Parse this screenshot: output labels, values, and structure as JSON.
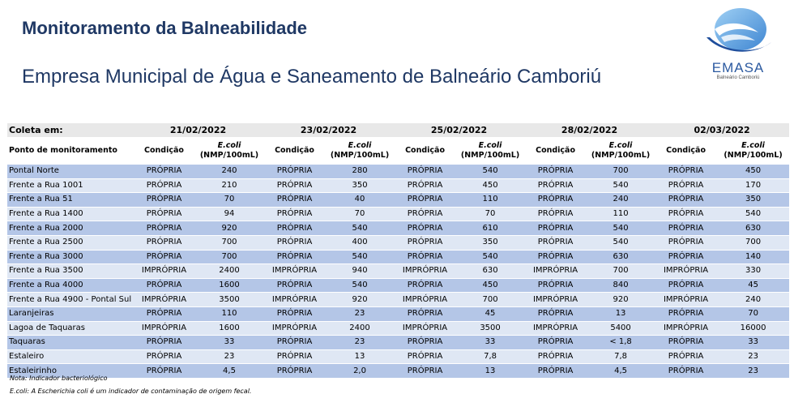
{
  "header": {
    "title": "Monitoramento da Balneabilidade",
    "subtitle": "Empresa Municipal de Água e Saneamento de Balneário Camboriú"
  },
  "logo": {
    "name": "EMASA",
    "tagline": "Balneário Camboriú",
    "colors": {
      "wave_dark": "#1f4e9c",
      "wave_light": "#5fa4e0"
    }
  },
  "table": {
    "coleta_label": "Coleta em:",
    "point_header": "Ponto de monitoramento",
    "condition_header": "Condição",
    "ecoli_header": "E.coli",
    "unit_header": "(NMP/100mL)",
    "dates": [
      "21/02/2022",
      "23/02/2022",
      "25/02/2022",
      "28/02/2022",
      "02/03/2022"
    ],
    "rows": [
      {
        "point": "Pontal Norte",
        "values": [
          [
            "PRÓPRIA",
            "240"
          ],
          [
            "PRÓPRIA",
            "280"
          ],
          [
            "PRÓPRIA",
            "540"
          ],
          [
            "PRÓPRIA",
            "700"
          ],
          [
            "PRÓPRIA",
            "450"
          ]
        ]
      },
      {
        "point": "Frente a Rua 1001",
        "values": [
          [
            "PRÓPRIA",
            "210"
          ],
          [
            "PRÓPRIA",
            "350"
          ],
          [
            "PRÓPRIA",
            "450"
          ],
          [
            "PRÓPRIA",
            "540"
          ],
          [
            "PRÓPRIA",
            "170"
          ]
        ]
      },
      {
        "point": "Frente a Rua 51",
        "values": [
          [
            "PRÓPRIA",
            "70"
          ],
          [
            "PRÓPRIA",
            "40"
          ],
          [
            "PRÓPRIA",
            "110"
          ],
          [
            "PRÓPRIA",
            "240"
          ],
          [
            "PRÓPRIA",
            "350"
          ]
        ]
      },
      {
        "point": "Frente a Rua 1400",
        "values": [
          [
            "PRÓPRIA",
            "94"
          ],
          [
            "PRÓPRIA",
            "70"
          ],
          [
            "PRÓPRIA",
            "70"
          ],
          [
            "PRÓPRIA",
            "110"
          ],
          [
            "PRÓPRIA",
            "540"
          ]
        ]
      },
      {
        "point": "Frente a Rua 2000",
        "values": [
          [
            "PRÓPRIA",
            "920"
          ],
          [
            "PRÓPRIA",
            "540"
          ],
          [
            "PRÓPRIA",
            "610"
          ],
          [
            "PRÓPRIA",
            "540"
          ],
          [
            "PRÓPRIA",
            "630"
          ]
        ]
      },
      {
        "point": "Frente a Rua 2500",
        "values": [
          [
            "PRÓPRIA",
            "700"
          ],
          [
            "PRÓPRIA",
            "400"
          ],
          [
            "PRÓPRIA",
            "350"
          ],
          [
            "PRÓPRIA",
            "540"
          ],
          [
            "PRÓPRIA",
            "700"
          ]
        ]
      },
      {
        "point": "Frente a Rua 3000",
        "values": [
          [
            "PRÓPRIA",
            "700"
          ],
          [
            "PRÓPRIA",
            "540"
          ],
          [
            "PRÓPRIA",
            "540"
          ],
          [
            "PRÓPRIA",
            "630"
          ],
          [
            "PRÓPRIA",
            "140"
          ]
        ]
      },
      {
        "point": "Frente a Rua 3500",
        "values": [
          [
            "IMPRÓPRIA",
            "2400"
          ],
          [
            "IMPRÓPRIA",
            "940"
          ],
          [
            "IMPRÓPRIA",
            "630"
          ],
          [
            "IMPRÓPRIA",
            "700"
          ],
          [
            "IMPRÓPRIA",
            "330"
          ]
        ]
      },
      {
        "point": "Frente a Rua 4000",
        "values": [
          [
            "PRÓPRIA",
            "1600"
          ],
          [
            "PRÓPRIA",
            "540"
          ],
          [
            "PRÓPRIA",
            "450"
          ],
          [
            "PRÓPRIA",
            "840"
          ],
          [
            "PRÓPRIA",
            "45"
          ]
        ]
      },
      {
        "point": "Frente a Rua 4900 - Pontal Sul",
        "values": [
          [
            "IMPRÓPRIA",
            "3500"
          ],
          [
            "IMPRÓPRIA",
            "920"
          ],
          [
            "IMPRÓPRIA",
            "700"
          ],
          [
            "IMPRÓPRIA",
            "920"
          ],
          [
            "IMPRÓPRIA",
            "240"
          ]
        ]
      },
      {
        "point": "Laranjeiras",
        "values": [
          [
            "PRÓPRIA",
            "110"
          ],
          [
            "PRÓPRIA",
            "23"
          ],
          [
            "PRÓPRIA",
            "45"
          ],
          [
            "PRÓPRIA",
            "13"
          ],
          [
            "PRÓPRIA",
            "70"
          ]
        ]
      },
      {
        "point": "Lagoa de Taquaras",
        "values": [
          [
            "IMPRÓPRIA",
            "1600"
          ],
          [
            "IMPRÓPRIA",
            "2400"
          ],
          [
            "IMPRÓPRIA",
            "3500"
          ],
          [
            "IMPRÓPRIA",
            "5400"
          ],
          [
            "IMPRÓPRIA",
            "16000"
          ]
        ]
      },
      {
        "point": "Taquaras",
        "values": [
          [
            "PRÓPRIA",
            "33"
          ],
          [
            "PRÓPRIA",
            "23"
          ],
          [
            "PRÓPRIA",
            "33"
          ],
          [
            "PRÓPRIA",
            "< 1,8"
          ],
          [
            "PRÓPRIA",
            "33"
          ]
        ]
      },
      {
        "point": "Estaleiro",
        "values": [
          [
            "PRÓPRIA",
            "23"
          ],
          [
            "PRÓPRIA",
            "13"
          ],
          [
            "PRÓPRIA",
            "7,8"
          ],
          [
            "PRÓPRIA",
            "7,8"
          ],
          [
            "PRÓPRIA",
            "23"
          ]
        ]
      },
      {
        "point": "Estaleirinho",
        "values": [
          [
            "PRÓPRIA",
            "4,5"
          ],
          [
            "PRÓPRIA",
            "2,0"
          ],
          [
            "PRÓPRIA",
            "13"
          ],
          [
            "PRÓPRIA",
            "4,5"
          ],
          [
            "PRÓPRIA",
            "23"
          ]
        ]
      }
    ]
  },
  "notes": [
    "Nota: Indicador bacteriológico",
    "E.coli: A Escherichia coli é um indicador de contaminação de origem fecal."
  ]
}
